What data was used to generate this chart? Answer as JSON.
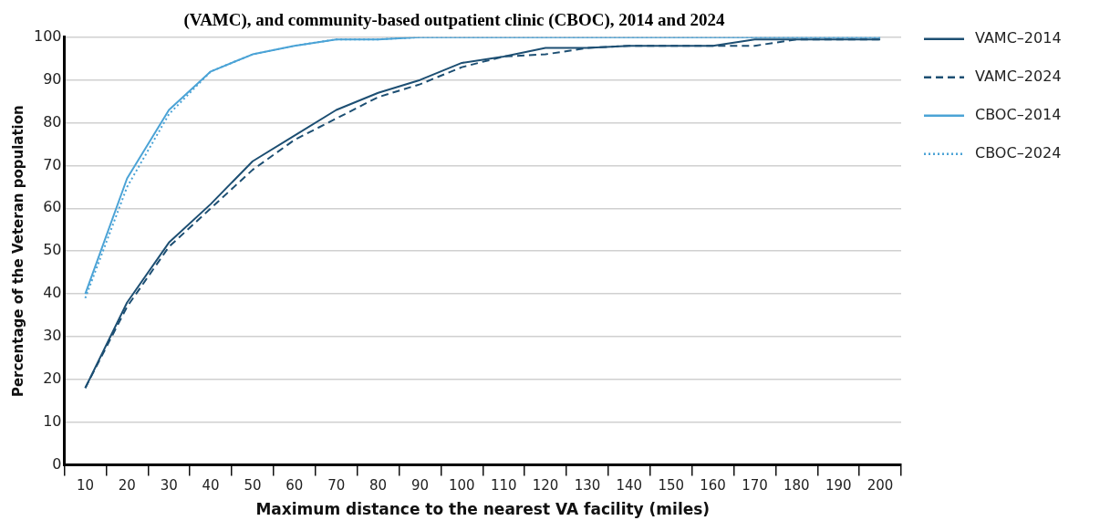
{
  "chart_data": {
    "type": "line",
    "title": "(VAMC), and community-based outpatient clinic (CBOC), 2014 and 2024",
    "xlabel": "Maximum distance to the nearest VA facility (miles)",
    "ylabel": "Percentage of the Veteran population",
    "categories": [
      "10",
      "20",
      "30",
      "40",
      "50",
      "60",
      "70",
      "80",
      "90",
      "100",
      "110",
      "120",
      "130",
      "140",
      "150",
      "160",
      "170",
      "180",
      "190",
      "200"
    ],
    "series": [
      {
        "name": "VAMC–2014",
        "color": "#1d4f73",
        "line_style": "solid",
        "values": [
          18,
          38,
          52,
          61,
          71,
          77,
          83,
          87,
          90,
          94,
          95.5,
          97.5,
          97.5,
          98,
          98,
          98,
          99.5,
          99.5,
          99.5,
          99.5
        ]
      },
      {
        "name": "VAMC–2024",
        "color": "#1d4f73",
        "line_style": "dashed",
        "values": [
          18,
          37,
          51,
          60,
          69,
          76,
          81,
          86,
          89,
          93,
          95.5,
          96,
          97.5,
          98,
          98,
          98,
          98,
          99.5,
          99.5,
          99.5
        ]
      },
      {
        "name": "CBOC–2014",
        "color": "#4ba3d6",
        "line_style": "solid",
        "values": [
          40,
          67,
          83,
          92,
          96,
          98,
          99.5,
          99.5,
          100,
          100,
          100,
          100,
          100,
          100,
          100,
          100,
          100,
          100,
          100,
          100
        ]
      },
      {
        "name": "CBOC–2024",
        "color": "#4ba3d6",
        "line_style": "dotted",
        "values": [
          39,
          65,
          82,
          92,
          96,
          98,
          99.5,
          99.5,
          100,
          100,
          100,
          100,
          100,
          100,
          100,
          100,
          100,
          100,
          100,
          100
        ]
      }
    ],
    "ylim": [
      0,
      100
    ],
    "yticks": [
      0,
      10,
      20,
      30,
      40,
      50,
      60,
      70,
      80,
      90,
      100
    ],
    "grid": "y",
    "legend": "right",
    "marker": "none"
  }
}
